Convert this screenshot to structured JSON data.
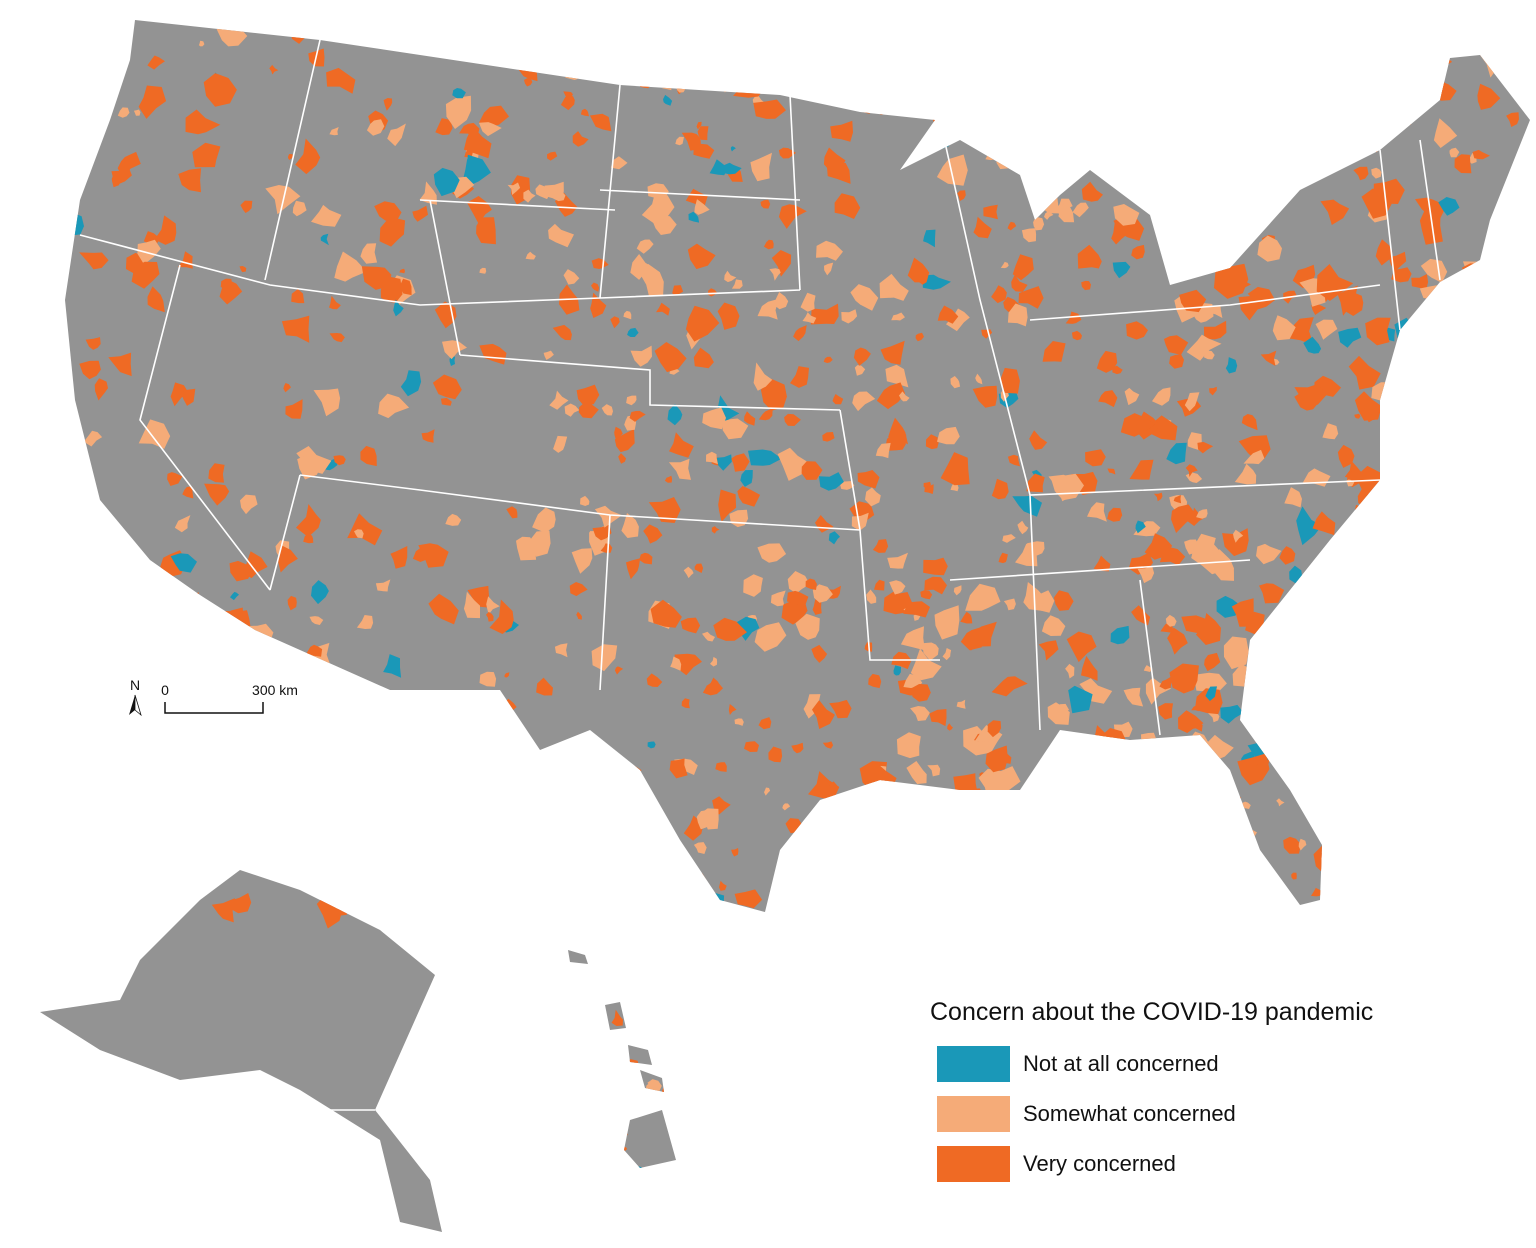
{
  "legend": {
    "title": "Concern about the COVID-19 pandemic",
    "items": [
      {
        "label": "Not at all concerned",
        "color": "#1a98b8"
      },
      {
        "label": "Somewhat concerned",
        "color": "#f5ab78"
      },
      {
        "label": "Very concerned",
        "color": "#ef6a24"
      }
    ]
  },
  "scale_bar": {
    "start": "0",
    "end": "300 km"
  },
  "north_arrow": "N"
}
